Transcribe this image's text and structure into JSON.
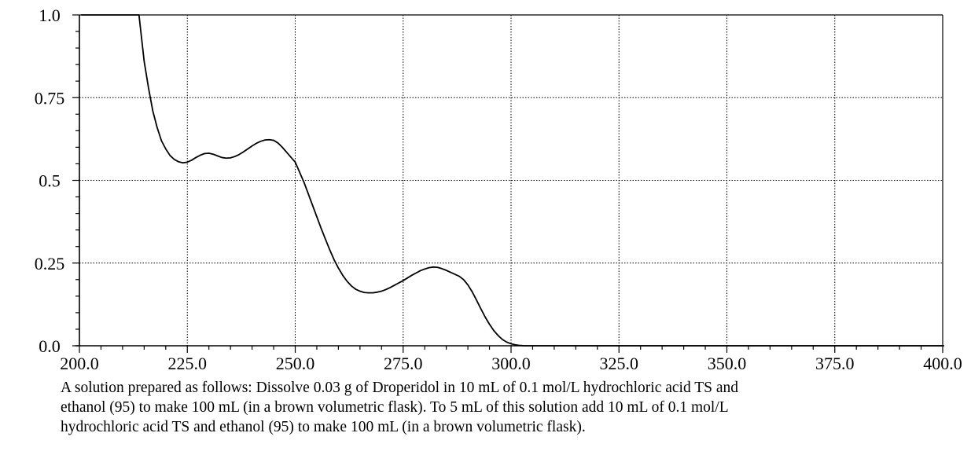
{
  "chart_data": {
    "type": "line",
    "title": "",
    "xlabel": "",
    "ylabel": "",
    "xlim": [
      200.0,
      400.0
    ],
    "ylim": [
      0.0,
      1.0
    ],
    "grid": true,
    "x_ticks": [
      200.0,
      225.0,
      250.0,
      275.0,
      300.0,
      325.0,
      350.0,
      375.0,
      400.0
    ],
    "x_tick_labels": [
      "200.0",
      "225.0",
      "250.0",
      "275.0",
      "300.0",
      "325.0",
      "350.0",
      "375.0",
      "400.0"
    ],
    "y_ticks": [
      0.0,
      0.25,
      0.5,
      0.75,
      1.0
    ],
    "y_tick_labels": [
      "0.0",
      "0.25",
      "0.5",
      "0.75",
      "1.0"
    ],
    "series": [
      {
        "x": [
          200.4,
          202,
          204,
          206,
          208,
          210,
          212,
          213,
          213.8,
          215,
          216,
          217,
          218,
          219,
          220,
          221,
          222,
          223,
          224,
          225,
          226,
          227,
          228,
          229,
          230,
          231,
          232,
          233,
          234,
          235,
          236,
          237,
          238,
          239,
          240,
          241,
          242,
          243,
          244,
          245,
          246,
          247,
          248,
          249,
          250,
          251,
          252,
          253,
          254,
          255,
          256,
          257,
          258,
          259,
          260,
          261,
          262,
          263,
          264,
          265,
          266,
          267,
          268,
          269,
          270,
          271,
          272,
          273,
          274,
          275,
          276,
          277,
          278,
          279,
          280,
          281,
          282,
          283,
          284,
          285,
          286,
          287,
          288,
          289,
          290,
          291,
          292,
          293,
          294,
          295,
          296,
          297,
          298,
          299,
          300,
          301,
          302,
          303,
          305,
          310,
          320,
          340,
          360,
          380,
          400
        ],
        "y": [
          1.0,
          1.0,
          1.0,
          1.0,
          1.0,
          1.0,
          1.0,
          1.0,
          1.0,
          0.86,
          0.78,
          0.71,
          0.66,
          0.62,
          0.595,
          0.575,
          0.563,
          0.556,
          0.553,
          0.555,
          0.561,
          0.569,
          0.576,
          0.581,
          0.582,
          0.579,
          0.574,
          0.569,
          0.567,
          0.568,
          0.572,
          0.578,
          0.586,
          0.595,
          0.604,
          0.612,
          0.618,
          0.622,
          0.623,
          0.621,
          0.613,
          0.6,
          0.585,
          0.57,
          0.555,
          0.525,
          0.495,
          0.46,
          0.425,
          0.39,
          0.355,
          0.322,
          0.29,
          0.26,
          0.235,
          0.213,
          0.195,
          0.181,
          0.171,
          0.165,
          0.161,
          0.16,
          0.16,
          0.162,
          0.165,
          0.17,
          0.176,
          0.183,
          0.19,
          0.197,
          0.205,
          0.213,
          0.22,
          0.227,
          0.232,
          0.236,
          0.238,
          0.237,
          0.233,
          0.228,
          0.222,
          0.216,
          0.21,
          0.2,
          0.184,
          0.163,
          0.138,
          0.112,
          0.087,
          0.065,
          0.046,
          0.031,
          0.019,
          0.011,
          0.006,
          0.003,
          0.001,
          0.0,
          0.0,
          0.0,
          0.0,
          0.0,
          0.0,
          0.0,
          0.0
        ]
      }
    ]
  },
  "caption": {
    "line1": "A solution prepared as follows: Dissolve 0.03 g of Droperidol in 10 mL of 0.1 mol/L hydrochloric acid TS and",
    "line2": "ethanol (95) to make 100 mL (in a brown volumetric flask). To 5 mL of this solution add 10 mL of 0.1 mol/L",
    "line3": "hydrochloric acid TS and ethanol (95) to make 100 mL (in a brown volumetric flask)."
  }
}
